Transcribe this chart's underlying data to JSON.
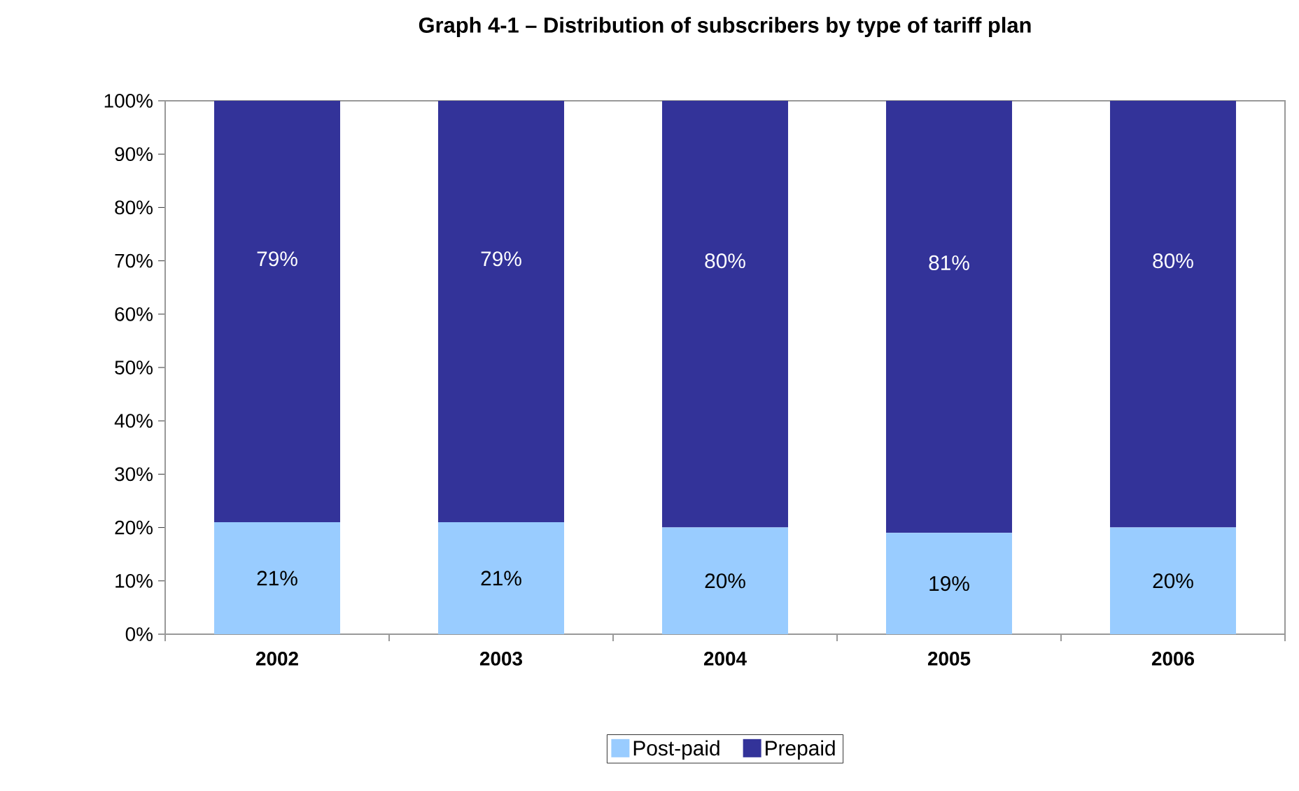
{
  "chart_data": {
    "type": "bar",
    "title": "Graph 4-1 – Distribution of subscribers by type of tariff plan",
    "categories": [
      "2002",
      "2003",
      "2004",
      "2005",
      "2006"
    ],
    "stacked": true,
    "series": [
      {
        "name": "Post-paid",
        "color": "#99ccff",
        "values": [
          21,
          21,
          20,
          19,
          20
        ],
        "value_labels": [
          "21%",
          "21%",
          "20%",
          "19%",
          "20%"
        ]
      },
      {
        "name": "Prepaid",
        "color": "#333399",
        "values": [
          79,
          79,
          80,
          81,
          80
        ],
        "value_labels": [
          "79%",
          "79%",
          "80%",
          "81%",
          "80%"
        ]
      }
    ],
    "ylim": [
      0,
      100
    ],
    "yticks": [
      {
        "value": 0,
        "label": "0%"
      },
      {
        "value": 10,
        "label": "10%"
      },
      {
        "value": 20,
        "label": "20%"
      },
      {
        "value": 30,
        "label": "30%"
      },
      {
        "value": 40,
        "label": "40%"
      },
      {
        "value": 50,
        "label": "50%"
      },
      {
        "value": 60,
        "label": "60%"
      },
      {
        "value": 70,
        "label": "70%"
      },
      {
        "value": 80,
        "label": "80%"
      },
      {
        "value": 90,
        "label": "90%"
      },
      {
        "value": 100,
        "label": "100%"
      }
    ],
    "legend": "bottom"
  }
}
